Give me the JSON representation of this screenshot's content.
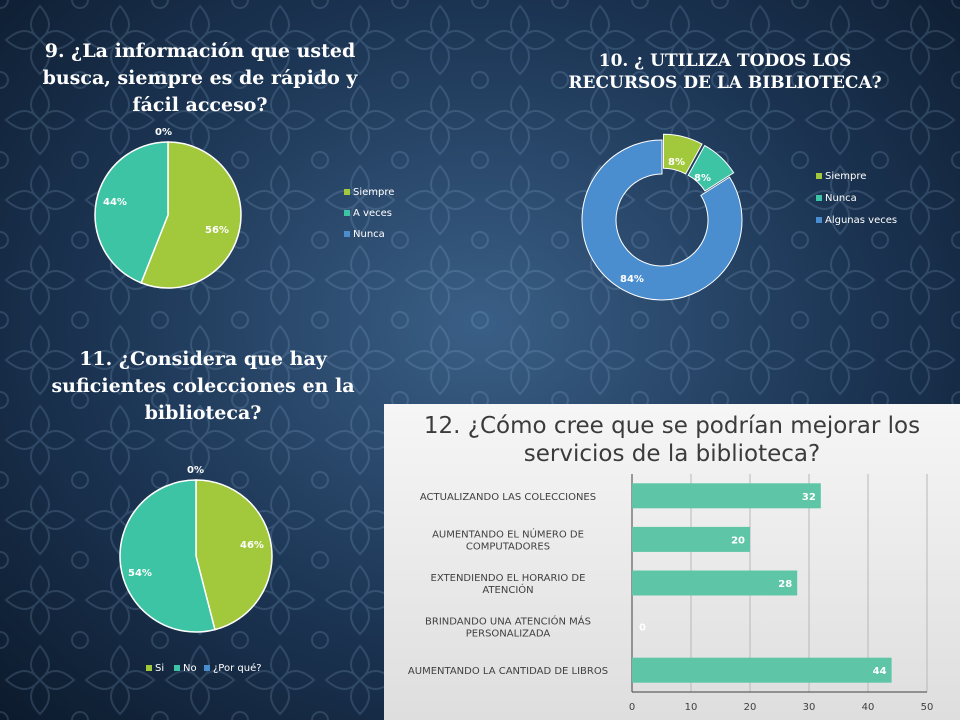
{
  "colors": {
    "green": "#a2c83c",
    "teal": "#3cc4a4",
    "blue": "#4a8ed0",
    "bar": "#5ec6a6",
    "text_dark": "#404040"
  },
  "chart_data": [
    {
      "type": "pie",
      "title": "9. ¿La información que usted busca,  siempre es de rápido y fácil acceso?",
      "categories": [
        "Siempre",
        "A veces",
        "Nunca"
      ],
      "values": [
        56,
        44,
        0
      ],
      "labels": [
        "56%",
        "44%",
        "0%"
      ],
      "legend_position": "right"
    },
    {
      "type": "pie",
      "title": "10. ¿ UTILIZA TODOS LOS RECURSOS DE LA BIBLIOTECA?",
      "categories": [
        "Siempre",
        "Nunca",
        "Algunas veces"
      ],
      "values": [
        8,
        8,
        84
      ],
      "labels": [
        "8%",
        "8%",
        "84%"
      ],
      "legend_position": "right"
    },
    {
      "type": "pie",
      "title": "11. ¿Considera que hay suficientes colecciones en la biblioteca?",
      "categories": [
        "Si",
        "No",
        "¿Por qué?"
      ],
      "values": [
        46,
        54,
        0
      ],
      "labels": [
        "46%",
        "54%",
        "0%"
      ],
      "legend_position": "bottom"
    },
    {
      "type": "bar",
      "orientation": "horizontal",
      "title": "12. ¿Cómo cree que se podrían mejorar los servicios de la biblioteca?",
      "categories": [
        "ACTUALIZANDO LAS COLECCIONES",
        "AUMENTANDO EL NÚMERO DE COMPUTADORES",
        "EXTENDIENDO EL HORARIO DE ATENCIÓN",
        "BRINDANDO UNA ATENCIÓN MÁS PERSONALIZADA",
        "AUMENTANDO LA CANTIDAD DE LIBROS"
      ],
      "values": [
        32,
        20,
        28,
        0,
        44
      ],
      "xlim": [
        0,
        50
      ],
      "xticks": [
        "0",
        "10",
        "20",
        "30",
        "40",
        "50"
      ],
      "grid": true
    }
  ]
}
